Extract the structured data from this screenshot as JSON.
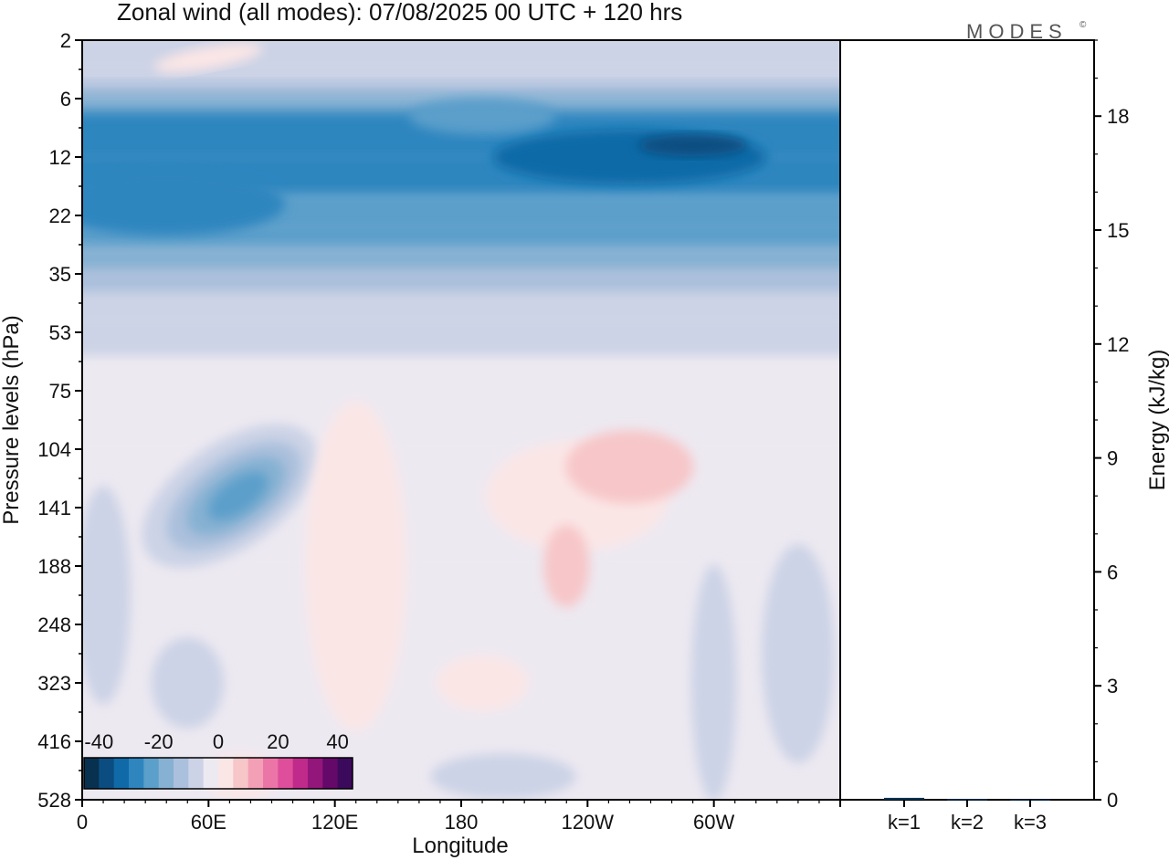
{
  "chart_data": [
    {
      "type": "heatmap",
      "title": "Zonal wind (all modes):  07/08/2025  00 UTC  + 120 hrs",
      "xlabel": "Longitude",
      "ylabel": "Pressure levels (hPa)",
      "x_ticks": [
        "0",
        "60E",
        "120E",
        "180",
        "120W",
        "60W"
      ],
      "x_tick_degrees": [
        0,
        60,
        120,
        180,
        240,
        300
      ],
      "xlim_degrees": [
        0,
        360
      ],
      "y_ticks": [
        "2",
        "6",
        "12",
        "22",
        "35",
        "53",
        "75",
        "104",
        "141",
        "188",
        "248",
        "323",
        "416",
        "528"
      ],
      "y_scale": "categorical-pressure-levels",
      "colorbar": {
        "tick_labels": [
          "-40",
          "-20",
          "0",
          "20",
          "40"
        ],
        "tick_values": [
          -40,
          -20,
          0,
          20,
          40
        ],
        "levels": [
          -40,
          -35,
          -30,
          -25,
          -20,
          -15,
          -10,
          -5,
          0,
          5,
          10,
          15,
          20,
          25,
          30,
          35,
          40
        ],
        "colors": [
          "#08304f",
          "#0b4d80",
          "#0f6aa7",
          "#2f86bf",
          "#5b9fcb",
          "#86b1d2",
          "#abc0dc",
          "#ccd3e6",
          "#ede9f1",
          "#fbe6e6",
          "#f7c6c8",
          "#f3a0b6",
          "#ec75a8",
          "#de4e9a",
          "#c02a8a",
          "#93167a",
          "#64086a",
          "#3c0a5c"
        ],
        "placement": "lower-left inset"
      },
      "features": [
        {
          "name": "easterly band",
          "pressure_hPa": [
            6,
            35
          ],
          "approx_u": -25
        },
        {
          "name": "easterly core",
          "lon_deg": [
            220,
            300
          ],
          "pressure_hPa": [
            10,
            16
          ],
          "approx_u": -32
        },
        {
          "name": "upper-tropospheric easterly jet",
          "lon_deg": [
            40,
            100
          ],
          "pressure_hPa": [
            104,
            248
          ],
          "approx_u": -25
        },
        {
          "name": "weak westerly region",
          "lon_deg": [
            200,
            270
          ],
          "pressure_hPa": [
            104,
            248
          ],
          "approx_u": 3
        }
      ]
    },
    {
      "type": "bar",
      "categories": [
        "k=1",
        "k=2",
        "k=3"
      ],
      "values": [
        0.05,
        0.02,
        0.01
      ],
      "ylabel": "Energy (kJ/kg)",
      "y_ticks": [
        "0",
        "3",
        "6",
        "9",
        "12",
        "15",
        "18"
      ],
      "ylim": [
        0,
        20
      ],
      "color": "#08304f"
    }
  ],
  "brand": "MODES"
}
